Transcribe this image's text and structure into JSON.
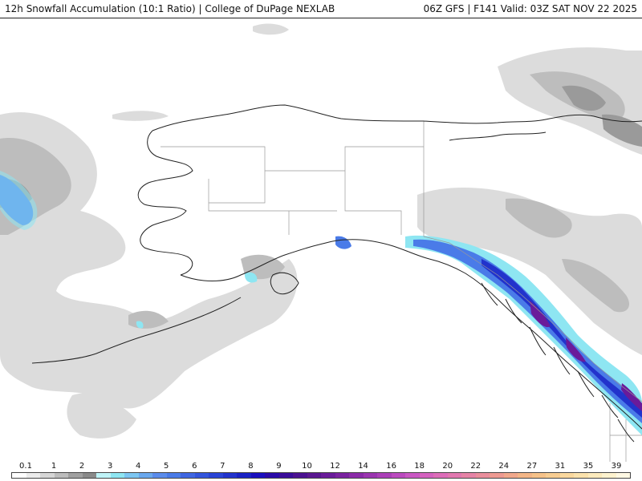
{
  "header": {
    "title": "12h Snowfall Accumulation (10:1 Ratio) | College of DuPage NEXLAB",
    "run_info": "06Z GFS | F141 Valid: 03Z SAT NOV 22 2025"
  },
  "map": {
    "region": "Alaska and western Canada",
    "colors": {
      "background": "#ffffff",
      "coast": "#222222",
      "borders": "#999999",
      "snow_light": "#dcdcdc",
      "snow_mid": "#bdbdbd",
      "snow_heavy": "#9a9a9a",
      "snow_cyan": "#8ee6f2",
      "snow_blue": "#4a7be8",
      "snow_dblue": "#2233cc",
      "snow_purple": "#6a1b9a"
    }
  },
  "legend": {
    "labels": [
      "0.1",
      "1",
      "2",
      "3",
      "4",
      "5",
      "6",
      "7",
      "8",
      "9",
      "10",
      "12",
      "14",
      "16",
      "18",
      "20",
      "22",
      "24",
      "27",
      "31",
      "35",
      "39"
    ],
    "colors": [
      "#ffffff",
      "#ececec",
      "#d6d6d6",
      "#bdbdbd",
      "#a0a0a0",
      "#8a8a8a",
      "#bff4f8",
      "#8ee6f2",
      "#7cc6f2",
      "#6aa8ee",
      "#5b8cec",
      "#4a7be8",
      "#3f66e2",
      "#3355dc",
      "#2a44d6",
      "#2233cc",
      "#1a22c4",
      "#1a0fbf",
      "#2a0aa8",
      "#3a0c9a",
      "#4b1191",
      "#5a1791",
      "#6a1b9a",
      "#7a22a0",
      "#8b2ba8",
      "#9b35b0",
      "#ab3fb8",
      "#bb4abf",
      "#c957c3",
      "#d562c0",
      "#dd6db9",
      "#e278b0",
      "#e683a6",
      "#ea8e9c",
      "#ee9a92",
      "#f1a88c",
      "#f4b687",
      "#f6c289",
      "#f8cd92",
      "#fad89e",
      "#fbe2ac",
      "#fdebbd",
      "#fef3cf",
      "#fff9e4"
    ]
  }
}
